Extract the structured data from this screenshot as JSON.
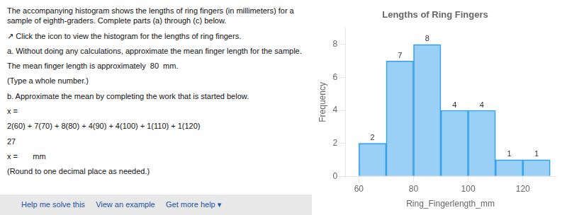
{
  "chart_data": {
    "type": "histogram",
    "title": "Lengths of Ring Fingers",
    "xlabel": "Ring_Fingerlength_mm",
    "ylabel": "Frequency",
    "bins": [
      60,
      70,
      80,
      90,
      100,
      110,
      120,
      130
    ],
    "values": [
      2,
      7,
      8,
      4,
      4,
      1,
      1
    ],
    "xlim": [
      55,
      132
    ],
    "xticks": [
      60,
      80,
      100,
      120
    ],
    "ylim": [
      0,
      9
    ],
    "yticks": [
      0,
      2,
      4,
      6,
      8
    ],
    "grid": false,
    "data_labels": true,
    "annotations": [
      "The accompanying histogram shows the lengths of ring fingers (in millimeters) for a sample of eighth-graders. Complete parts (a) through (c) below.",
      "↗ Click the icon to view the histogram for the lengths of ring fingers.",
      "a. Without doing any calculations, approximate the mean finger length for the sample.",
      "The mean finger length is approximately  80  mm.",
      "(Type a whole number.)",
      "b. Approximate the mean by completing the work that is started below.",
      "x =",
      "2(60) + 7(70) + 8(80) + 4(90) + 4(100) + 1(110) + 1(120)",
      "27",
      "x =       mm",
      "(Round to one decimal place as needed.)",
      "Help me solve this     View an example     Get more help ▾"
    ]
  }
}
